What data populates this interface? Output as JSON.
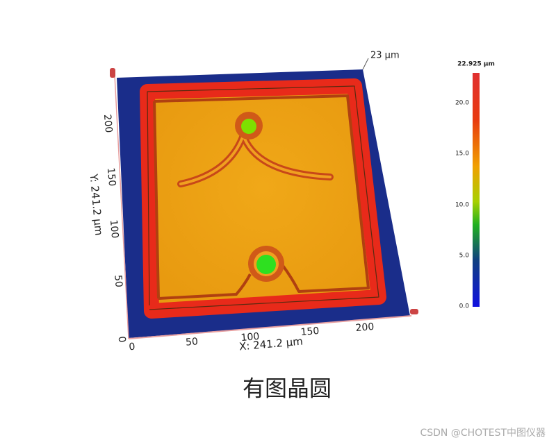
{
  "scene": {
    "z_height": "23 µm",
    "x_axis": {
      "label": "X: 241.2 µm",
      "ticks": [
        "0",
        "50",
        "100",
        "150",
        "200"
      ]
    },
    "y_axis": {
      "label": "Y: 241.2 µm",
      "ticks": [
        "0",
        "50",
        "100",
        "150",
        "200"
      ]
    }
  },
  "colorbar": {
    "max_label": "22.925 µm",
    "ticks": [
      "20.0",
      "15.0",
      "10.0",
      "5.0",
      "0.0"
    ]
  },
  "caption": "有图晶圆",
  "watermark": "CSDN @CHOTEST中图仪器"
}
